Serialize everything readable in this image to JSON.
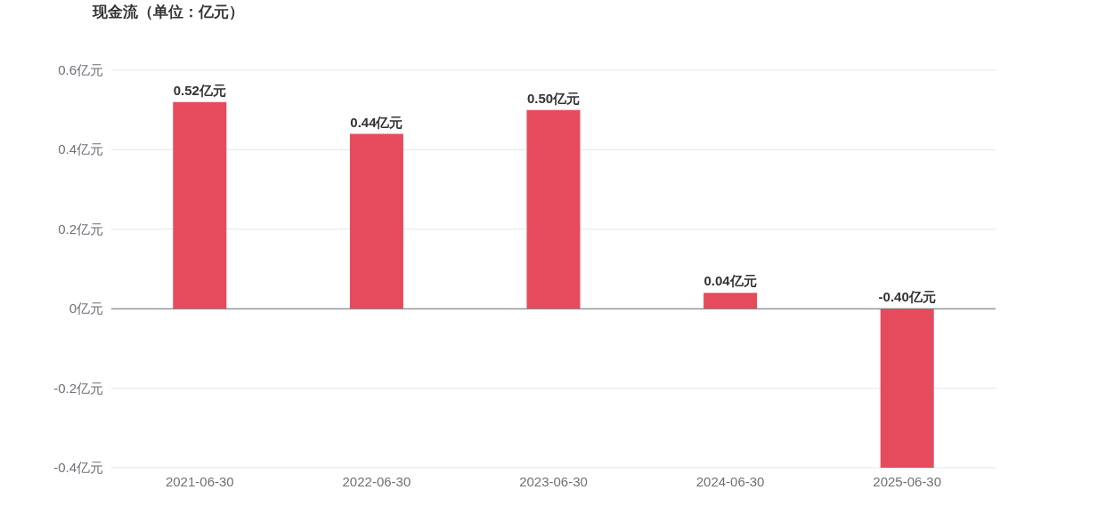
{
  "chart_data": {
    "type": "bar",
    "title": "现金流（单位：亿元）",
    "categories": [
      "2021-06-30",
      "2022-06-30",
      "2023-06-30",
      "2024-06-30",
      "2025-06-30"
    ],
    "values": [
      0.52,
      0.44,
      0.5,
      0.04,
      -0.4
    ],
    "value_labels": [
      "0.52亿元",
      "0.44亿元",
      "0.50亿元",
      "0.04亿元",
      "-0.40亿元"
    ],
    "color": "#e64b5d",
    "ylim": [
      -0.4,
      0.6
    ],
    "yticks": [
      {
        "value": -0.4,
        "label": "-0.4亿元"
      },
      {
        "value": -0.2,
        "label": "-0.2亿元"
      },
      {
        "value": 0,
        "label": "0亿元"
      },
      {
        "value": 0.2,
        "label": "0.2亿元"
      },
      {
        "value": 0.4,
        "label": "0.4亿元"
      },
      {
        "value": 0.6,
        "label": "0.6亿元"
      }
    ],
    "grid": "y"
  }
}
